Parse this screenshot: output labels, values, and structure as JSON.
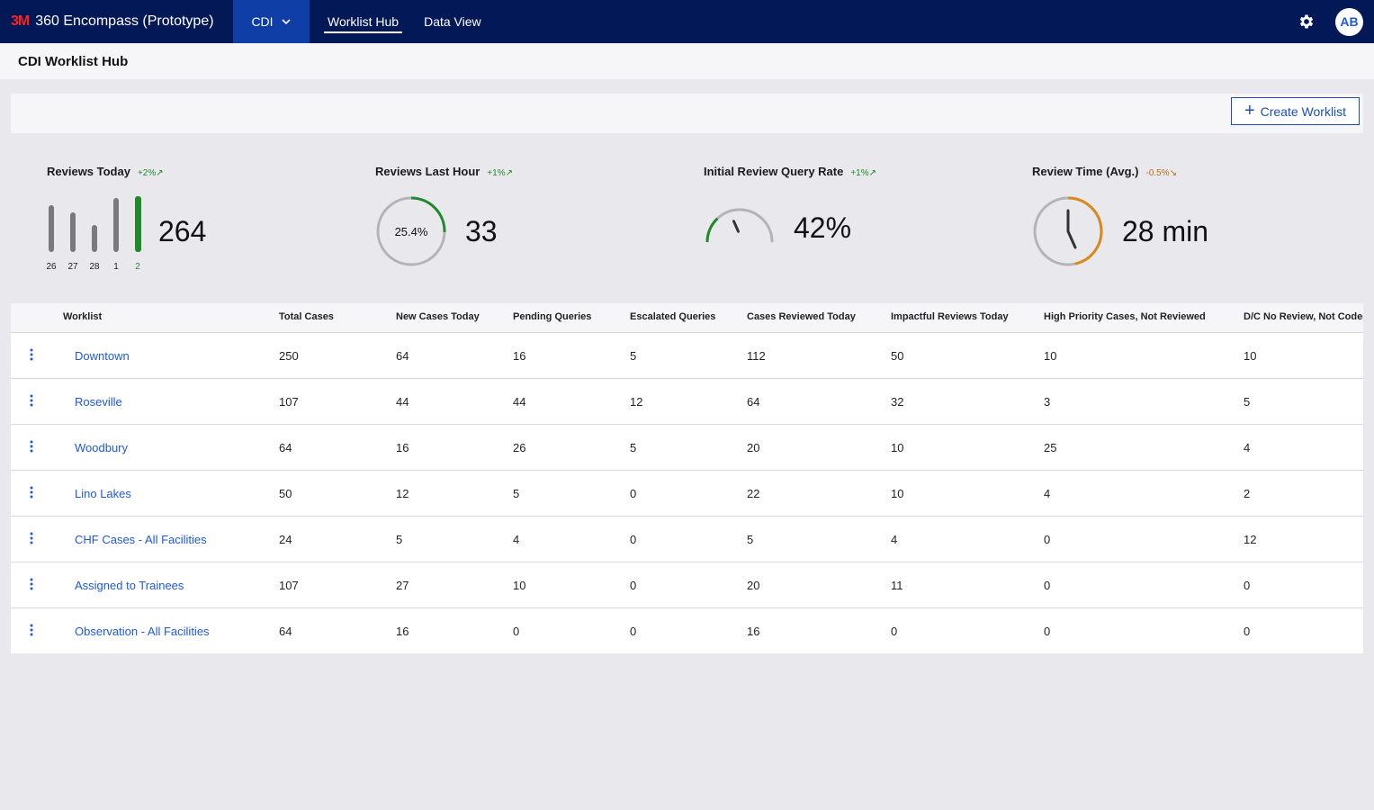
{
  "nav": {
    "logo": "3M",
    "app_title": "360 Encompass (Prototype)",
    "module": "CDI",
    "tabs": [
      {
        "label": "Worklist Hub",
        "active": true
      },
      {
        "label": "Data View",
        "active": false
      }
    ],
    "avatar_initials": "AB"
  },
  "page": {
    "title": "CDI Worklist Hub",
    "create_button": "Create Worklist"
  },
  "kpis": {
    "reviews_today": {
      "title": "Reviews Today",
      "trend": "+2%",
      "value": "264",
      "bars": [
        {
          "label": "26",
          "value": 52
        },
        {
          "label": "27",
          "value": 44
        },
        {
          "label": "28",
          "value": 30
        },
        {
          "label": "1",
          "value": 60
        },
        {
          "label": "2",
          "value": 62
        }
      ]
    },
    "reviews_last_hour": {
      "title": "Reviews Last Hour",
      "trend": "+1%",
      "value": "33",
      "ring_label": "25.4%",
      "ring_fraction": 0.254
    },
    "query_rate": {
      "title": "Initial Review Query Rate",
      "trend": "+1%",
      "value": "42%",
      "gauge_fraction": 0.42
    },
    "review_time": {
      "title": "Review Time (Avg.)",
      "trend": "-0.5%",
      "value": "28 min",
      "clock_fraction": 0.467
    }
  },
  "colors": {
    "nav_bg": "#031957",
    "module_bg": "#0e3ea6",
    "link": "#1f5ad6",
    "green": "#208a2a",
    "orange": "#d98a1a",
    "ring_gray": "#b4b4b8"
  },
  "table": {
    "columns": [
      "Worklist",
      "Total Cases",
      "New Cases Today",
      "Pending Queries",
      "Escalated Queries",
      "Cases Reviewed Today",
      "Impactful Reviews Today",
      "High Priority Cases, Not Reviewed",
      "D/C No Review, Not Coded"
    ],
    "rows": [
      [
        "Downtown",
        "250",
        "64",
        "16",
        "5",
        "112",
        "50",
        "10",
        "10"
      ],
      [
        "Roseville",
        "107",
        "44",
        "44",
        "12",
        "64",
        "32",
        "3",
        "5"
      ],
      [
        "Woodbury",
        "64",
        "16",
        "26",
        "5",
        "20",
        "10",
        "25",
        "4"
      ],
      [
        "Lino Lakes",
        "50",
        "12",
        "5",
        "0",
        "22",
        "10",
        "4",
        "2"
      ],
      [
        "CHF Cases - All Facilities",
        "24",
        "5",
        "4",
        "0",
        "5",
        "4",
        "0",
        "12"
      ],
      [
        "Assigned to Trainees",
        "107",
        "27",
        "10",
        "0",
        "20",
        "11",
        "0",
        "0"
      ],
      [
        "Observation - All Facilities",
        "64",
        "16",
        "0",
        "0",
        "16",
        "0",
        "0",
        "0"
      ]
    ]
  }
}
